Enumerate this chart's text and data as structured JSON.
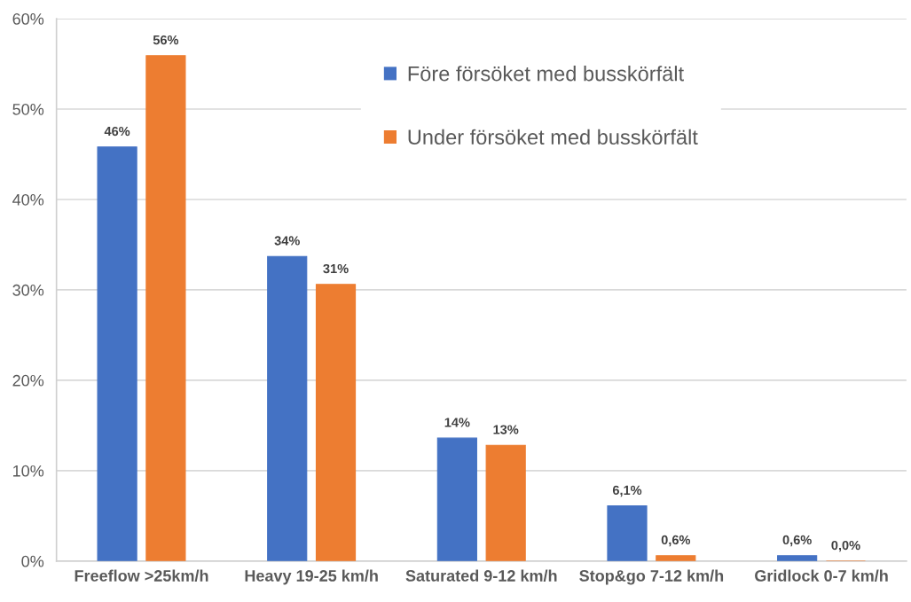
{
  "chart_data": {
    "type": "bar",
    "categories": [
      "Freeflow >25km/h",
      "Heavy 19-25 km/h",
      "Saturated 9-12 km/h",
      "Stop&go 7-12 km/h",
      "Gridlock 0-7 km/h"
    ],
    "series": [
      {
        "name": "Före försöket med busskörfält",
        "color": "#4472c4",
        "values": [
          45.8,
          33.7,
          13.6,
          6.1,
          0.6
        ],
        "value_labels": [
          "46%",
          "34%",
          "14%",
          "6,1%",
          "0,6%"
        ]
      },
      {
        "name": "Under försöket med busskörfält",
        "color": "#ed7d31",
        "values": [
          55.9,
          30.6,
          12.8,
          0.6,
          0.0
        ],
        "value_labels": [
          "56%",
          "31%",
          "13%",
          "0,6%",
          "0,0%"
        ]
      }
    ],
    "ylim": [
      0,
      60
    ],
    "yticks": [
      {
        "value": 0,
        "label": "0%"
      },
      {
        "value": 10,
        "label": "10%"
      },
      {
        "value": 20,
        "label": "20%"
      },
      {
        "value": 30,
        "label": "30%"
      },
      {
        "value": 40,
        "label": "40%"
      },
      {
        "value": 50,
        "label": "50%"
      },
      {
        "value": 60,
        "label": "60%"
      }
    ],
    "grid": "y",
    "legend": "top"
  }
}
